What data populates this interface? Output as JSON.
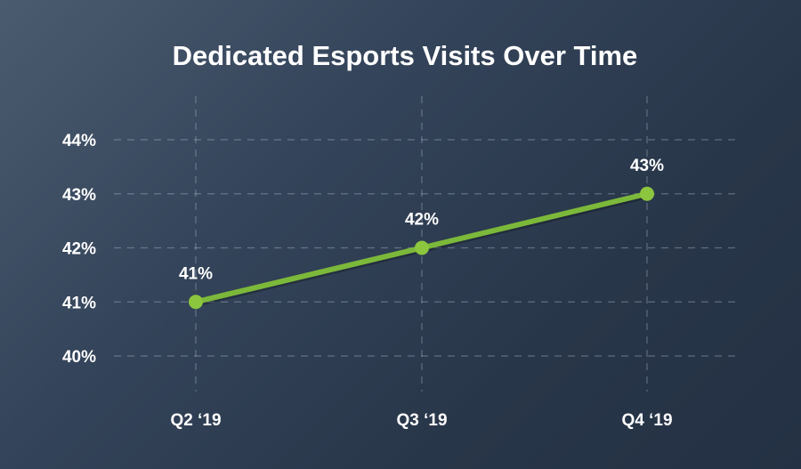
{
  "chart_data": {
    "type": "line",
    "title": "Dedicated Esports Visits Over Time",
    "categories": [
      "Q2 ‘19",
      "Q3 ‘19",
      "Q4 ‘19"
    ],
    "values": [
      41,
      42,
      43
    ],
    "data_labels": [
      "41%",
      "42%",
      "43%"
    ],
    "yticks": [
      40,
      41,
      42,
      43,
      44
    ],
    "ytick_labels": [
      "40%",
      "41%",
      "42%",
      "43%",
      "44%"
    ],
    "ylim": [
      40,
      44
    ],
    "xlabel": "",
    "ylabel": "",
    "grid": true,
    "grid_style": "dashed",
    "line_color": "#7cb83a",
    "marker_color": "#8cc63f",
    "text_color": "#ffffff"
  }
}
